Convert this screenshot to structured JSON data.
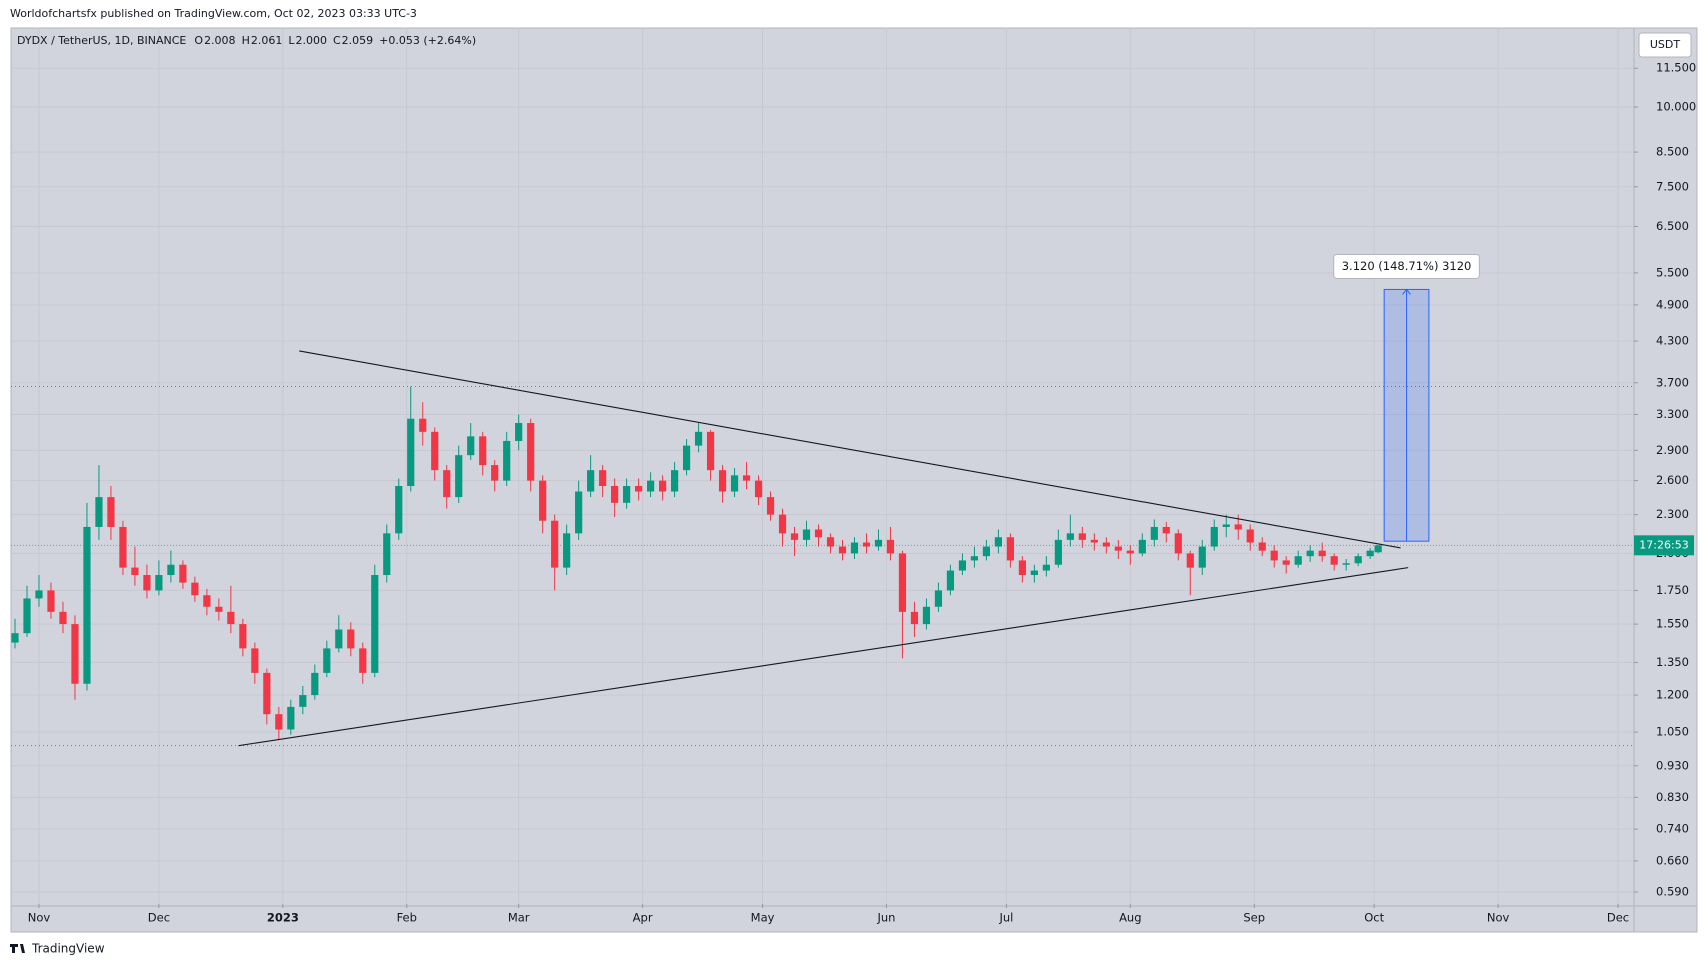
{
  "header": {
    "publisher": "Worldofchartsfx published on TradingView.com, Oct 02, 2023 03:33 UTC-3",
    "symbol": "DYDX / TetherUS, 1D, BINANCE",
    "ohlc": [
      [
        "O",
        "2.008"
      ],
      [
        "H",
        "2.061"
      ],
      [
        "L",
        "2.000"
      ],
      [
        "C",
        "2.059"
      ]
    ],
    "change": "+0.053 (+2.64%)",
    "currency": "USDT"
  },
  "footer": "TradingView",
  "chart_data": {
    "type": "candlestick",
    "x": [
      -6,
      -3,
      0,
      3,
      6,
      9,
      12,
      15,
      18,
      21,
      24,
      27,
      30,
      33,
      36,
      39,
      42,
      45,
      48,
      51,
      54,
      57,
      60,
      63,
      66,
      69,
      72,
      75,
      78,
      81,
      84,
      87,
      90,
      93,
      96,
      99,
      102,
      105,
      108,
      111,
      114,
      117,
      120,
      123,
      126,
      129,
      132,
      135,
      138,
      141,
      144,
      147,
      150,
      153,
      156,
      159,
      162,
      165,
      168,
      171,
      174,
      177,
      180,
      183,
      186,
      189,
      192,
      195,
      198,
      201,
      204,
      207,
      210,
      213,
      216,
      219,
      222,
      225,
      228,
      231,
      234,
      237,
      240,
      243,
      246,
      249,
      252,
      255,
      258,
      261,
      264,
      267,
      270,
      273,
      276,
      279,
      282,
      285,
      288,
      291,
      294,
      297,
      300,
      303,
      306,
      309,
      312,
      315,
      318,
      321,
      324,
      327,
      330,
      333,
      335
    ],
    "open": [
      1.45,
      1.5,
      1.7,
      1.75,
      1.62,
      1.55,
      1.25,
      2.2,
      2.45,
      2.2,
      1.9,
      1.85,
      1.75,
      1.85,
      1.92,
      1.8,
      1.72,
      1.65,
      1.62,
      1.55,
      1.42,
      1.3,
      1.12,
      1.06,
      1.15,
      1.2,
      1.3,
      1.42,
      1.52,
      1.42,
      1.3,
      1.85,
      2.15,
      2.55,
      3.25,
      3.1,
      2.7,
      2.45,
      2.85,
      3.05,
      2.75,
      2.6,
      3.0,
      3.2,
      2.6,
      2.25,
      1.9,
      2.15,
      2.5,
      2.7,
      2.55,
      2.4,
      2.55,
      2.5,
      2.6,
      2.5,
      2.7,
      2.95,
      3.1,
      2.7,
      2.5,
      2.65,
      2.6,
      2.45,
      2.3,
      2.15,
      2.1,
      2.18,
      2.12,
      2.05,
      2.0,
      2.08,
      2.05,
      2.1,
      2.0,
      1.62,
      1.55,
      1.65,
      1.75,
      1.88,
      1.95,
      1.98,
      2.05,
      2.12,
      1.95,
      1.85,
      1.88,
      1.92,
      2.1,
      2.15,
      2.1,
      2.08,
      2.05,
      2.02,
      2.0,
      2.1,
      2.2,
      2.15,
      2.0,
      1.9,
      2.05,
      2.2,
      2.22,
      2.18,
      2.08,
      2.02,
      1.95,
      1.92,
      1.98,
      2.02,
      1.98,
      1.92,
      1.93,
      1.98,
      2.008
    ],
    "high": [
      1.58,
      1.78,
      1.85,
      1.8,
      1.68,
      1.6,
      2.4,
      2.75,
      2.55,
      2.25,
      2.05,
      1.92,
      1.95,
      2.02,
      1.95,
      1.84,
      1.76,
      1.7,
      1.78,
      1.58,
      1.45,
      1.32,
      1.15,
      1.18,
      1.24,
      1.34,
      1.46,
      1.6,
      1.56,
      1.45,
      1.92,
      2.22,
      2.62,
      3.65,
      3.45,
      3.15,
      2.75,
      2.95,
      3.2,
      3.1,
      2.8,
      3.1,
      3.3,
      3.25,
      2.65,
      2.3,
      2.22,
      2.6,
      2.85,
      2.75,
      2.62,
      2.62,
      2.62,
      2.68,
      2.65,
      2.78,
      3.02,
      3.2,
      3.12,
      2.75,
      2.72,
      2.78,
      2.65,
      2.5,
      2.35,
      2.2,
      2.25,
      2.22,
      2.15,
      2.1,
      2.12,
      2.15,
      2.18,
      2.2,
      2.02,
      1.68,
      1.7,
      1.8,
      1.92,
      2.0,
      2.05,
      2.1,
      2.18,
      2.15,
      1.98,
      1.92,
      1.98,
      2.18,
      2.3,
      2.2,
      2.15,
      2.12,
      2.1,
      2.06,
      2.15,
      2.26,
      2.24,
      2.18,
      2.02,
      2.1,
      2.26,
      2.3,
      2.3,
      2.22,
      2.12,
      2.06,
      1.98,
      2.02,
      2.06,
      2.08,
      2.0,
      1.96,
      2.0,
      2.04,
      2.061
    ],
    "low": [
      1.42,
      1.48,
      1.65,
      1.58,
      1.5,
      1.18,
      1.22,
      2.1,
      2.1,
      1.85,
      1.78,
      1.7,
      1.72,
      1.8,
      1.76,
      1.68,
      1.6,
      1.57,
      1.5,
      1.38,
      1.25,
      1.08,
      1.02,
      1.04,
      1.12,
      1.18,
      1.28,
      1.4,
      1.38,
      1.25,
      1.28,
      1.8,
      2.1,
      2.5,
      2.95,
      2.6,
      2.35,
      2.4,
      2.8,
      2.65,
      2.5,
      2.55,
      2.9,
      2.5,
      2.15,
      1.75,
      1.85,
      2.1,
      2.45,
      2.45,
      2.28,
      2.35,
      2.42,
      2.45,
      2.42,
      2.45,
      2.65,
      2.88,
      2.6,
      2.4,
      2.45,
      2.52,
      2.38,
      2.25,
      2.05,
      1.98,
      2.05,
      2.05,
      2.0,
      1.95,
      1.96,
      2.0,
      2.02,
      1.95,
      1.37,
      1.48,
      1.52,
      1.62,
      1.72,
      1.85,
      1.9,
      1.95,
      2.0,
      1.9,
      1.8,
      1.8,
      1.84,
      1.9,
      2.05,
      2.04,
      2.02,
      2.0,
      1.96,
      1.92,
      1.98,
      2.05,
      2.08,
      1.95,
      1.72,
      1.85,
      2.02,
      2.12,
      2.1,
      2.02,
      1.98,
      1.9,
      1.86,
      1.9,
      1.94,
      1.94,
      1.88,
      1.88,
      1.91,
      1.96,
      2.0
    ],
    "close": [
      1.5,
      1.7,
      1.75,
      1.62,
      1.55,
      1.25,
      2.2,
      2.45,
      2.2,
      1.9,
      1.85,
      1.75,
      1.85,
      1.92,
      1.8,
      1.72,
      1.65,
      1.62,
      1.55,
      1.42,
      1.3,
      1.12,
      1.06,
      1.15,
      1.2,
      1.3,
      1.42,
      1.52,
      1.42,
      1.3,
      1.85,
      2.15,
      2.55,
      3.25,
      3.1,
      2.7,
      2.45,
      2.85,
      3.05,
      2.75,
      2.6,
      3.0,
      3.2,
      2.6,
      2.25,
      1.9,
      2.15,
      2.5,
      2.7,
      2.55,
      2.4,
      2.55,
      2.5,
      2.6,
      2.5,
      2.7,
      2.95,
      3.1,
      2.7,
      2.5,
      2.65,
      2.6,
      2.45,
      2.3,
      2.15,
      2.1,
      2.18,
      2.12,
      2.05,
      2.0,
      2.08,
      2.05,
      2.1,
      2.0,
      1.62,
      1.55,
      1.65,
      1.75,
      1.88,
      1.95,
      1.98,
      2.05,
      2.12,
      1.95,
      1.85,
      1.88,
      1.92,
      2.1,
      2.15,
      2.1,
      2.08,
      2.05,
      2.02,
      2.0,
      2.1,
      2.2,
      2.15,
      2.0,
      1.9,
      2.05,
      2.2,
      2.22,
      2.18,
      2.08,
      2.02,
      1.95,
      1.92,
      1.98,
      2.02,
      1.98,
      1.92,
      1.93,
      1.98,
      2.02,
      2.059
    ],
    "up_color": "#089981",
    "down_color": "#f23645",
    "log_scale": true,
    "grid": true,
    "xlim": [
      -7,
      399
    ],
    "xticks": [
      {
        "value": 0,
        "label": "Nov"
      },
      {
        "value": 30,
        "label": "Dec"
      },
      {
        "value": 61,
        "label": "2023"
      },
      {
        "value": 92,
        "label": "Feb"
      },
      {
        "value": 120,
        "label": "Mar"
      },
      {
        "value": 151,
        "label": "Apr"
      },
      {
        "value": 181,
        "label": "May"
      },
      {
        "value": 212,
        "label": "Jun"
      },
      {
        "value": 242,
        "label": "Jul"
      },
      {
        "value": 273,
        "label": "Aug"
      },
      {
        "value": 304,
        "label": "Sep"
      },
      {
        "value": 334,
        "label": "Oct"
      },
      {
        "value": 365,
        "label": "Nov"
      },
      {
        "value": 395,
        "label": "Dec"
      }
    ],
    "ylim": [
      0.565,
      13.2
    ],
    "yticks": [
      {
        "value": 11.5,
        "label": "11.500"
      },
      {
        "value": 10,
        "label": "10.000"
      },
      {
        "value": 8.5,
        "label": "8.500"
      },
      {
        "value": 7.5,
        "label": "7.500"
      },
      {
        "value": 6.5,
        "label": "6.500"
      },
      {
        "value": 5.5,
        "label": "5.500"
      },
      {
        "value": 4.9,
        "label": "4.900"
      },
      {
        "value": 4.3,
        "label": "4.300"
      },
      {
        "value": 3.7,
        "label": "3.700"
      },
      {
        "value": 3.3,
        "label": "3.300"
      },
      {
        "value": 2.9,
        "label": "2.900"
      },
      {
        "value": 2.6,
        "label": "2.600"
      },
      {
        "value": 2.3,
        "label": "2.300"
      },
      {
        "value": 2,
        "label": "2.000"
      },
      {
        "value": 1.75,
        "label": "1.750"
      },
      {
        "value": 1.55,
        "label": "1.550"
      },
      {
        "value": 1.35,
        "label": "1.350"
      },
      {
        "value": 1.2,
        "label": "1.200"
      },
      {
        "value": 1.05,
        "label": "1.050"
      },
      {
        "value": 0.93,
        "label": "0.930"
      },
      {
        "value": 0.83,
        "label": "0.830"
      },
      {
        "value": 0.74,
        "label": "0.740"
      },
      {
        "value": 0.66,
        "label": "0.660"
      },
      {
        "value": 0.59,
        "label": "0.590"
      }
    ],
    "trendlines": [
      {
        "x": [
          65.1,
          340.6
        ],
        "y": [
          4.15,
          2.04
        ]
      },
      {
        "x": [
          49.9,
          342.5
        ],
        "y": [
          1.0,
          1.9
        ]
      }
    ],
    "levels": [
      3.65,
      1.0
    ],
    "measure": {
      "x": [
        336.5,
        347.7
      ],
      "y": [
        2.09,
        5.18
      ],
      "label": "3.120 (148.71%) 3120"
    },
    "countdown": "17:26:53"
  }
}
